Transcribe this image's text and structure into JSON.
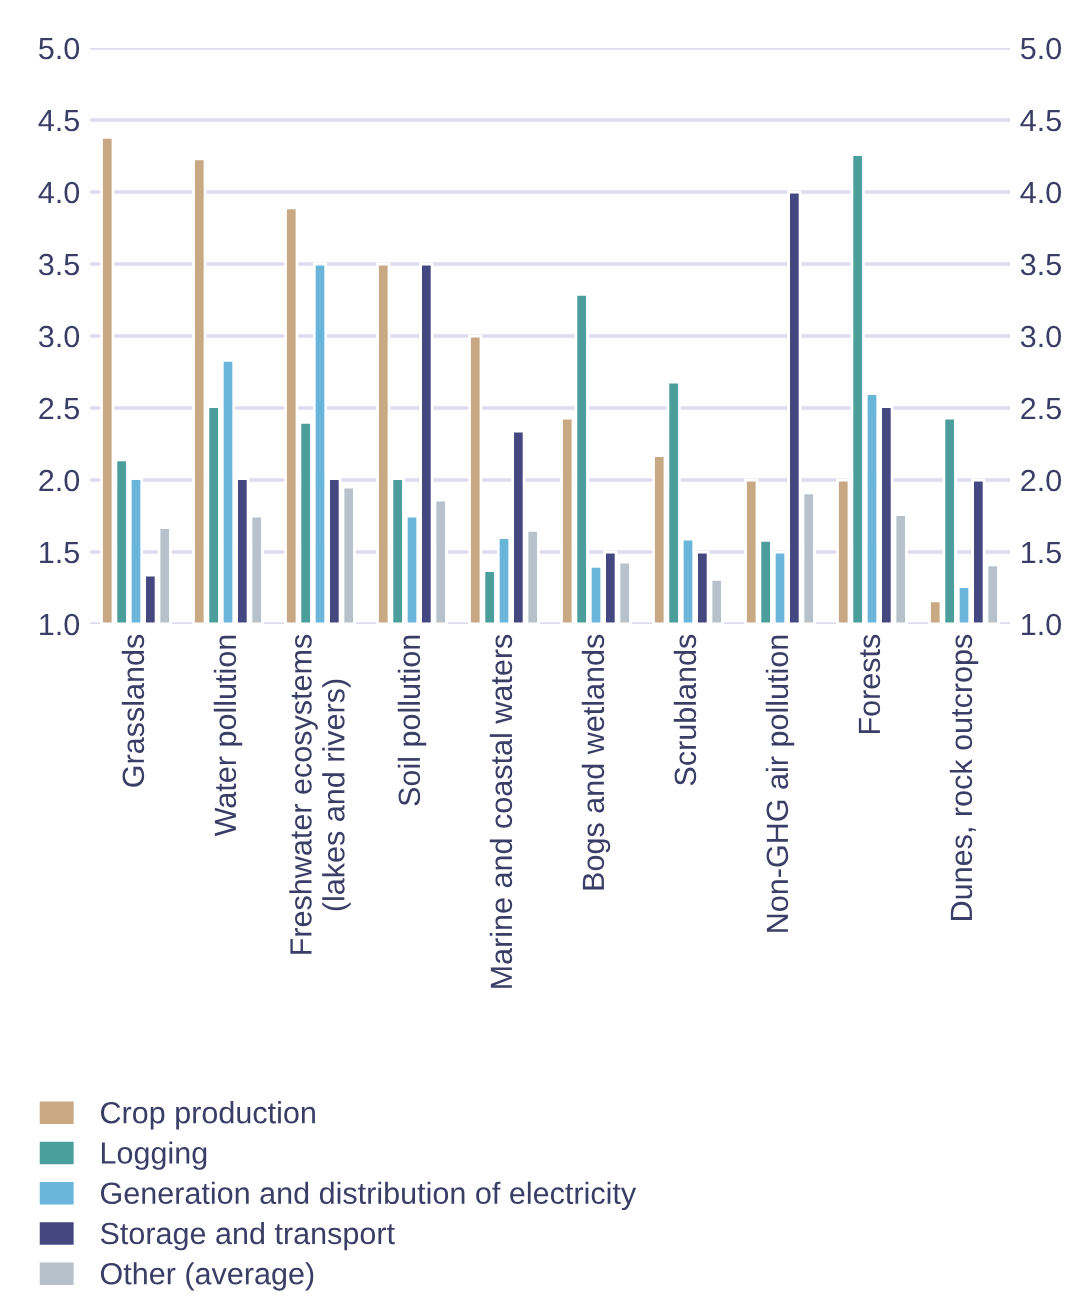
{
  "chart_data": {
    "type": "bar",
    "categories": [
      "Grasslands",
      "Water pollution",
      "Freshwater ecosystems\n(lakes and rivers)",
      "Soil pollution",
      "Marine and coastal waters",
      "Bogs and wetlands",
      "Scrublands",
      "Non-GHG air pollution",
      "Forests",
      "Dunes, rock outcrops"
    ],
    "series": [
      {
        "name": "Crop production",
        "color": "#c9a983",
        "values": [
          4.38,
          4.23,
          3.89,
          3.5,
          3.0,
          2.43,
          2.17,
          2.0,
          2.0,
          1.16
        ]
      },
      {
        "name": "Logging",
        "color": "#4a9e9c",
        "values": [
          2.14,
          2.51,
          2.4,
          2.01,
          1.37,
          3.29,
          2.68,
          1.58,
          4.26,
          2.43
        ]
      },
      {
        "name": "Generation and distribution of electricity",
        "color": "#6bb5da",
        "values": [
          2.01,
          2.83,
          3.5,
          1.75,
          1.6,
          1.4,
          1.59,
          1.5,
          2.6,
          1.26
        ]
      },
      {
        "name": "Storage and transport",
        "color": "#444780",
        "values": [
          1.34,
          2.01,
          2.01,
          3.5,
          2.34,
          1.5,
          1.5,
          4.0,
          2.51,
          2.0
        ]
      },
      {
        "name": "Other (average)",
        "color": "#b6c1cb",
        "values": [
          1.67,
          1.75,
          1.95,
          1.86,
          1.65,
          1.43,
          1.31,
          1.91,
          1.76,
          1.41
        ]
      }
    ],
    "ylim": [
      1.0,
      5.0
    ],
    "yticks": [
      {
        "value": 1.0,
        "label": "1.0"
      },
      {
        "value": 1.5,
        "label": "1.5"
      },
      {
        "value": 2.0,
        "label": "2.0"
      },
      {
        "value": 2.5,
        "label": "2.5"
      },
      {
        "value": 3.0,
        "label": "3.0"
      },
      {
        "value": 3.5,
        "label": "3.5"
      },
      {
        "value": 4.0,
        "label": "4.0"
      },
      {
        "value": 4.5,
        "label": "4.5"
      },
      {
        "value": 5.0,
        "label": "5.0"
      }
    ],
    "y2lim": [
      1.0,
      5.0
    ],
    "y2ticks": [
      {
        "value": 1.0,
        "label": "1.0"
      },
      {
        "value": 1.5,
        "label": "1.5"
      },
      {
        "value": 2.0,
        "label": "2.0"
      },
      {
        "value": 2.5,
        "label": "2.5"
      },
      {
        "value": 3.0,
        "label": "3.0"
      },
      {
        "value": 3.5,
        "label": "3.5"
      },
      {
        "value": 4.0,
        "label": "4.0"
      },
      {
        "value": 4.5,
        "label": "4.5"
      },
      {
        "value": 5.0,
        "label": "5.0"
      }
    ],
    "grid": "y",
    "legend": "bottom left"
  }
}
